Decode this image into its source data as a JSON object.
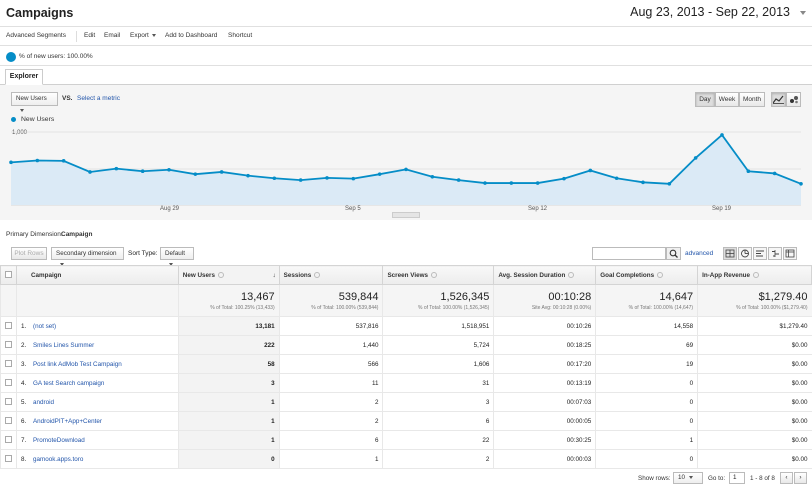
{
  "page": {
    "title": "Campaigns",
    "date_range": "Aug 23, 2013 - Sep 22, 2013"
  },
  "toolbar": {
    "advanced_segments": "Advanced Segments",
    "edit": "Edit",
    "email": "Email",
    "export": "Export",
    "add_to_dashboard": "Add to Dashboard",
    "shortcut": "Shortcut"
  },
  "segment": {
    "label": "% of new users: 100.00%"
  },
  "tabs": {
    "explorer": "Explorer"
  },
  "chart_controls": {
    "metric": "New Users",
    "vs": "VS.",
    "select_metric": "Select a metric",
    "day": "Day",
    "week": "Week",
    "month": "Month"
  },
  "chart_data": {
    "type": "area",
    "series": [
      {
        "name": "New Users",
        "values": [
          590,
          615,
          610,
          460,
          505,
          470,
          490,
          430,
          460,
          410,
          375,
          350,
          380,
          370,
          430,
          495,
          395,
          350,
          310,
          310,
          310,
          370,
          480,
          375,
          320,
          300,
          650,
          960,
          470,
          440,
          300
        ]
      }
    ],
    "y_ticks": [
      "1,000",
      "500"
    ],
    "ylim": [
      0,
      1000
    ],
    "x_ticks": [
      "Aug 29",
      "Sep 5",
      "Sep 12",
      "Sep 19"
    ],
    "color": "#058dc7",
    "fill": "#dbeaf6"
  },
  "primary_dimension": {
    "label": "Primary Dimension:",
    "value": "Campaign"
  },
  "table_controls": {
    "plot_rows": "Plot Rows",
    "secondary_dimension": "Secondary dimension",
    "sort_type_label": "Sort Type:",
    "sort_type": "Default",
    "advanced": "advanced"
  },
  "table": {
    "headers": [
      "Campaign",
      "New Users",
      "Sessions",
      "Screen Views",
      "Avg. Session Duration",
      "Goal Completions",
      "In-App Revenue"
    ],
    "totals": [
      {
        "value": "13,467",
        "sub": "% of Total: 100.25% (13,433)"
      },
      {
        "value": "539,844",
        "sub": "% of Total: 100.00% (539,844)"
      },
      {
        "value": "1,526,345",
        "sub": "% of Total: 100.00% (1,526,345)"
      },
      {
        "value": "00:10:28",
        "sub": "Site Avg: 00:10:28 (0.00%)"
      },
      {
        "value": "14,647",
        "sub": "% of Total: 100.00% (14,647)"
      },
      {
        "value": "$1,279.40",
        "sub": "% of Total: 100.00% ($1,279.40)"
      }
    ],
    "rows": [
      {
        "idx": "1.",
        "name": "(not set)",
        "new_users": "13,181",
        "sessions": "537,816",
        "screen_views": "1,518,951",
        "duration": "00:10:26",
        "goals": "14,558",
        "revenue": "$1,279.40"
      },
      {
        "idx": "2.",
        "name": "Smiles Lines Summer",
        "new_users": "222",
        "sessions": "1,440",
        "screen_views": "5,724",
        "duration": "00:18:25",
        "goals": "69",
        "revenue": "$0.00"
      },
      {
        "idx": "3.",
        "name": "Post link AdMob Test Campaign",
        "new_users": "58",
        "sessions": "566",
        "screen_views": "1,606",
        "duration": "00:17:20",
        "goals": "19",
        "revenue": "$0.00"
      },
      {
        "idx": "4.",
        "name": "GA test Search campaign",
        "new_users": "3",
        "sessions": "11",
        "screen_views": "31",
        "duration": "00:13:19",
        "goals": "0",
        "revenue": "$0.00"
      },
      {
        "idx": "5.",
        "name": "android",
        "new_users": "1",
        "sessions": "2",
        "screen_views": "3",
        "duration": "00:07:03",
        "goals": "0",
        "revenue": "$0.00"
      },
      {
        "idx": "6.",
        "name": "AndroidPIT+App+Center",
        "new_users": "1",
        "sessions": "2",
        "screen_views": "6",
        "duration": "00:00:05",
        "goals": "0",
        "revenue": "$0.00"
      },
      {
        "idx": "7.",
        "name": "PromoteDownload",
        "new_users": "1",
        "sessions": "6",
        "screen_views": "22",
        "duration": "00:30:25",
        "goals": "1",
        "revenue": "$0.00"
      },
      {
        "idx": "8.",
        "name": "gamook.apps.toro",
        "new_users": "0",
        "sessions": "1",
        "screen_views": "2",
        "duration": "00:00:03",
        "goals": "0",
        "revenue": "$0.00"
      }
    ]
  },
  "footer": {
    "show_rows_label": "Show rows:",
    "show_rows_value": "10",
    "goto_label": "Go to:",
    "goto_value": "1",
    "range": "1 - 8 of 8"
  },
  "colors": {
    "accent": "#058dc7",
    "link": "#2255aa"
  }
}
